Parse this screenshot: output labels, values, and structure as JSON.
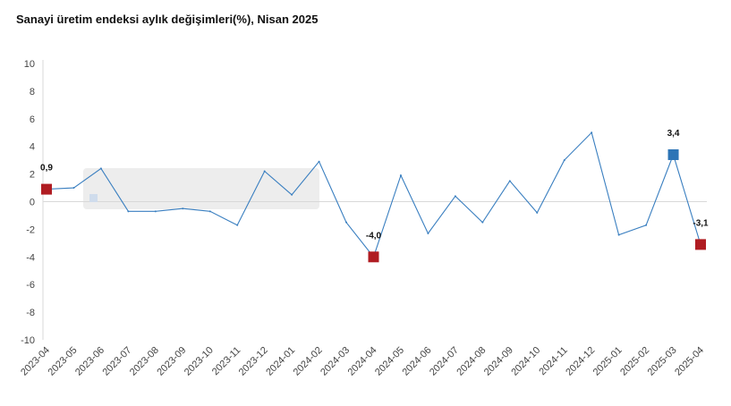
{
  "title": "Sanayi üretim endeksi aylık değişimleri(%), Nisan 2025",
  "chart_data": {
    "type": "line",
    "title": "Sanayi üretim endeksi aylık değişimleri(%), Nisan 2025",
    "xlabel": "",
    "ylabel": "",
    "ylim": [
      -10,
      10
    ],
    "yticks": [
      "10",
      "8",
      "6",
      "4",
      "2",
      "0",
      "-2",
      "-4",
      "-6",
      "-8",
      "-10"
    ],
    "categories": [
      "2023-04",
      "2023-05",
      "2023-06",
      "2023-07",
      "2023-08",
      "2023-09",
      "2023-10",
      "2023-11",
      "2023-12",
      "2024-01",
      "2024-02",
      "2024-03",
      "2024-04",
      "2024-05",
      "2024-06",
      "2024-07",
      "2024-08",
      "2024-09",
      "2024-10",
      "2024-11",
      "2024-12",
      "2025-01",
      "2025-02",
      "2025-03",
      "2025-04"
    ],
    "values": [
      0.9,
      1.0,
      2.4,
      -0.7,
      -0.7,
      -0.5,
      -0.7,
      -1.7,
      2.2,
      0.5,
      2.9,
      -1.5,
      -4.0,
      1.9,
      -2.3,
      0.4,
      -1.5,
      1.5,
      -0.8,
      3.0,
      5.0,
      -2.4,
      -1.7,
      3.4,
      -3.1
    ],
    "line_color": "#3a7fc0",
    "markers": [
      {
        "index": 0,
        "label": "0,9",
        "color": "#b01c22"
      },
      {
        "index": 12,
        "label": "-4,0",
        "color": "#b01c22"
      },
      {
        "index": 23,
        "label": "3,4",
        "color": "#2e75b6"
      },
      {
        "index": 24,
        "label": "-3,1",
        "color": "#b01c22"
      }
    ],
    "grid": false
  }
}
